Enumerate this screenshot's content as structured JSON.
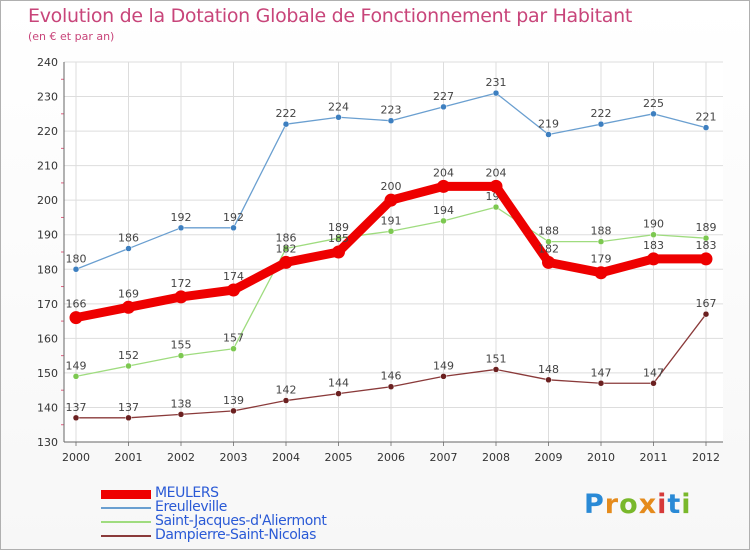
{
  "title": "Evolution de la Dotation Globale de Fonctionnement par Habitant",
  "subtitle": "(en € et par an)",
  "logo": {
    "text": "Proxiti",
    "colors": [
      "#2a8ad6",
      "#e58b1c",
      "#79b82b",
      "#e58b1c",
      "#d63a3a",
      "#2a8ad6",
      "#79b82b"
    ]
  },
  "chart_data": {
    "type": "line",
    "x": [
      "2000",
      "2001",
      "2002",
      "2003",
      "2004",
      "2005",
      "2006",
      "2007",
      "2008",
      "2009",
      "2010",
      "2011",
      "2012"
    ],
    "ylim": [
      130,
      240
    ],
    "yticks": [
      "130",
      "140",
      "150",
      "160",
      "170",
      "180",
      "190",
      "200",
      "210",
      "220",
      "230",
      "240"
    ],
    "grid": true,
    "legend_position": "bottom-left",
    "series": [
      {
        "name": "Ereulleville",
        "color": "#6a9fd0",
        "point_color": "#3d7fc0",
        "values": [
          180,
          186,
          192,
          192,
          222,
          224,
          223,
          227,
          231,
          219,
          222,
          225,
          221
        ]
      },
      {
        "name": "Saint-Jacques-d'Aliermont",
        "color": "#9fdc7f",
        "point_color": "#7cc850",
        "values": [
          149,
          152,
          155,
          157,
          186,
          189,
          191,
          194,
          198,
          188,
          188,
          190,
          189
        ]
      },
      {
        "name": "Dampierre-Saint-Nicolas",
        "color": "#8a3a3a",
        "point_color": "#6b2020",
        "values": [
          137,
          137,
          138,
          139,
          142,
          144,
          146,
          149,
          151,
          148,
          147,
          147,
          167
        ]
      },
      {
        "name": "MEULERS",
        "color": "#ee0000",
        "point_color": "#ee0000",
        "values": [
          166,
          169,
          172,
          174,
          182,
          185,
          200,
          204,
          204,
          182,
          179,
          183,
          183
        ]
      }
    ],
    "legend_order": [
      3,
      0,
      1,
      2
    ]
  }
}
